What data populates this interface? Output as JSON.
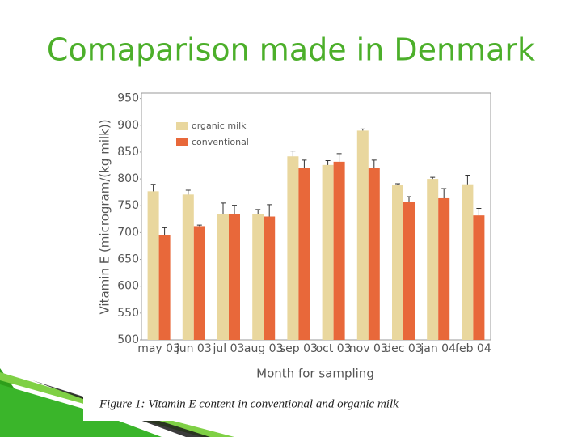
{
  "title": "Comaparison made in Denmark",
  "chart_data": {
    "type": "bar",
    "y_label": "Vitamin E (microgram/(kg milk))",
    "x_label": "Month for sampling",
    "caption": "Figure 1: Vitamin E content in conventional and organic milk",
    "categories": [
      "may 03",
      "jun 03",
      "jul 03",
      "aug 03",
      "sep 03",
      "oct 03",
      "nov 03",
      "dec 03",
      "jan 04",
      "feb 04"
    ],
    "series": [
      {
        "name": "organic milk",
        "color": "#e9d79e",
        "values": [
          777,
          771,
          735,
          735,
          842,
          826,
          890,
          788,
          800,
          790
        ],
        "errors": [
          13,
          8,
          20,
          8,
          10,
          8,
          3,
          3,
          3,
          17
        ]
      },
      {
        "name": "conventional",
        "color": "#e8683a",
        "values": [
          696,
          712,
          735,
          730,
          820,
          832,
          820,
          757,
          764,
          732
        ],
        "errors": [
          13,
          2,
          16,
          22,
          15,
          15,
          15,
          10,
          18,
          13
        ]
      }
    ],
    "ylim": [
      500,
      960
    ],
    "yticks": [
      500,
      550,
      600,
      650,
      700,
      750,
      800,
      850,
      900,
      950
    ],
    "legend": "upper left"
  }
}
